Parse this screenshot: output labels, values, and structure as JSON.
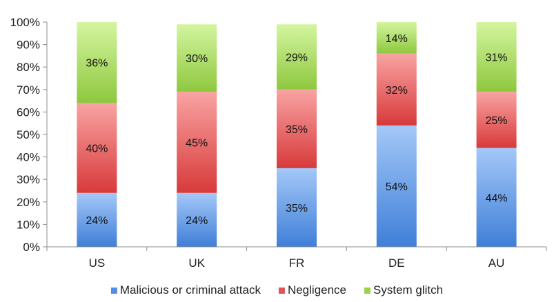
{
  "chart_data": {
    "type": "bar",
    "stacked": true,
    "percent": true,
    "categories": [
      "US",
      "UK",
      "FR",
      "DE",
      "AU"
    ],
    "series": [
      {
        "name": "Malicious or criminal attack",
        "values": [
          24,
          24,
          35,
          54,
          44
        ],
        "color_top": "#a4c8f8",
        "color_bottom": "#3f7fd8",
        "legend_color": "#4f8ee6"
      },
      {
        "name": "Negligence",
        "values": [
          40,
          45,
          35,
          32,
          25
        ],
        "color_top": "#f9a3a3",
        "color_bottom": "#d83a3a",
        "legend_color": "#e05555"
      },
      {
        "name": "System glitch",
        "values": [
          36,
          30,
          29,
          14,
          31
        ],
        "color_top": "#d4f5a0",
        "color_bottom": "#8ec83e",
        "legend_color": "#9bd14d"
      }
    ],
    "data_labels": [
      [
        "24%",
        "24%",
        "35%",
        "54%",
        "44%"
      ],
      [
        "40%",
        "45%",
        "35%",
        "32%",
        "25%"
      ],
      [
        "36%",
        "30%",
        "29%",
        "14%",
        "31%"
      ]
    ],
    "yticks": [
      "0%",
      "10%",
      "20%",
      "30%",
      "40%",
      "50%",
      "60%",
      "70%",
      "80%",
      "90%",
      "100%"
    ],
    "ylim": [
      0,
      100
    ],
    "grid": false,
    "legend_position": "bottom",
    "title": "",
    "xlabel": "",
    "ylabel": ""
  }
}
